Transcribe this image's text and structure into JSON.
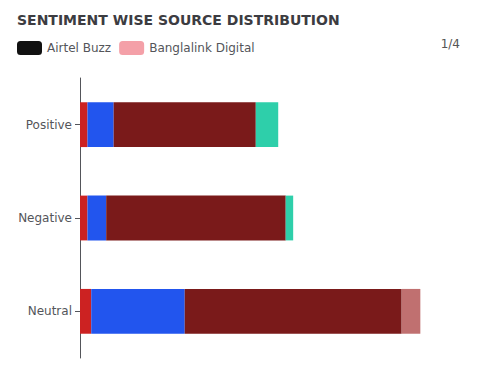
{
  "chart_data": {
    "type": "bar",
    "title": "SENTIMENT WISE SOURCE DISTRIBUTION",
    "orientation": "horizontal",
    "stacked": true,
    "categories": [
      "Positive",
      "Negative",
      "Neutral"
    ],
    "series": [
      {
        "color": "#cc2222",
        "values": [
          2,
          2,
          3
        ]
      },
      {
        "color": "#2255ee",
        "values": [
          7,
          5,
          25
        ]
      },
      {
        "color": "#7a1a1a",
        "values": [
          38,
          48,
          58
        ]
      },
      {
        "colors": [
          "#2ecfaa",
          "#2ecfaa",
          "#c07070"
        ],
        "values": [
          6,
          2,
          5
        ]
      },
      {
        "name": "Airtel Buzz",
        "color": "#111111",
        "values": [
          null,
          null,
          null
        ]
      },
      {
        "name": "Banglalink Digital",
        "color": "#f4a0a8",
        "values": [
          null,
          null,
          null
        ]
      }
    ],
    "xlim": [
      0,
      100
    ],
    "tick_labels": "y",
    "grid": false,
    "legend": "top",
    "annotations": [
      "1/4"
    ]
  }
}
